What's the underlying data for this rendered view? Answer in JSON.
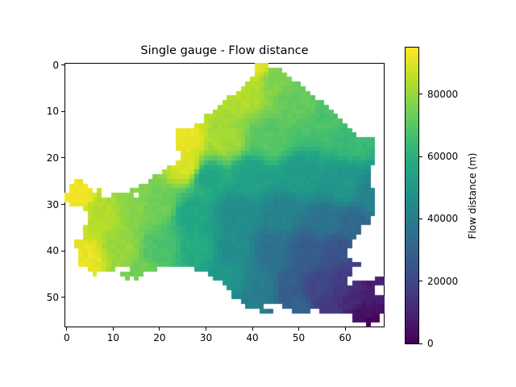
{
  "chart_data": {
    "type": "heatmap",
    "title": "Single gauge - Flow distance",
    "xlabel": "",
    "ylabel": "",
    "xlim": [
      -0.5,
      68.5
    ],
    "ylim": [
      56.5,
      -0.5
    ],
    "x_ticks": [
      0,
      10,
      20,
      30,
      40,
      50,
      60
    ],
    "y_ticks": [
      0,
      10,
      20,
      30,
      40,
      50
    ],
    "colormap": "viridis",
    "colorbar": {
      "label": "Flow distance (m)",
      "range": [
        0,
        95000
      ],
      "ticks": [
        0,
        20000,
        40000,
        60000,
        80000
      ]
    },
    "grid_shape": [
      57,
      69
    ],
    "gauge_location": {
      "col": 65,
      "row": 56,
      "value": 0
    },
    "row_spans": [
      [
        [
          41,
          43
        ]
      ],
      [
        [
          41,
          46
        ]
      ],
      [
        [
          41,
          47
        ]
      ],
      [
        [
          40,
          48
        ]
      ],
      [
        [
          39,
          50
        ]
      ],
      [
        [
          38,
          51
        ]
      ],
      [
        [
          37,
          52
        ]
      ],
      [
        [
          35,
          53
        ]
      ],
      [
        [
          34,
          55
        ]
      ],
      [
        [
          33,
          56
        ]
      ],
      [
        [
          32,
          57
        ]
      ],
      [
        [
          30,
          58
        ]
      ],
      [
        [
          30,
          59
        ]
      ],
      [
        [
          28,
          60
        ]
      ],
      [
        [
          24,
          61
        ]
      ],
      [
        [
          24,
          62
        ]
      ],
      [
        [
          24,
          66
        ]
      ],
      [
        [
          24,
          66
        ]
      ],
      [
        [
          24,
          66
        ]
      ],
      [
        [
          25,
          66
        ]
      ],
      [
        [
          25,
          66
        ]
      ],
      [
        [
          24,
          66
        ]
      ],
      [
        [
          22,
          65
        ]
      ],
      [
        [
          21,
          65
        ]
      ],
      [
        [
          19,
          65
        ]
      ],
      [
        [
          2,
          3
        ],
        [
          18,
          65
        ]
      ],
      [
        [
          1,
          4
        ],
        [
          16,
          65
        ]
      ],
      [
        [
          1,
          5
        ],
        [
          7,
          7
        ],
        [
          14,
          66
        ]
      ],
      [
        [
          0,
          7
        ],
        [
          10,
          14
        ],
        [
          16,
          66
        ]
      ],
      [
        [
          0,
          66
        ]
      ],
      [
        [
          1,
          66
        ]
      ],
      [
        [
          4,
          66
        ]
      ],
      [
        [
          5,
          66
        ]
      ],
      [
        [
          5,
          65
        ]
      ],
      [
        [
          5,
          65
        ]
      ],
      [
        [
          4,
          63
        ]
      ],
      [
        [
          4,
          63
        ]
      ],
      [
        [
          4,
          62
        ]
      ],
      [
        [
          2,
          61
        ]
      ],
      [
        [
          2,
          61
        ]
      ],
      [
        [
          3,
          60
        ]
      ],
      [
        [
          3,
          60
        ]
      ],
      [
        [
          3,
          61
        ]
      ],
      [
        [
          3,
          63
        ]
      ],
      [
        [
          5,
          10
        ],
        [
          14,
          19
        ],
        [
          28,
          61
        ]
      ],
      [
        [
          6,
          6
        ],
        [
          12,
          16
        ],
        [
          31,
          61
        ]
      ],
      [
        [
          13,
          13
        ],
        [
          15,
          15
        ],
        [
          32,
          60
        ],
        [
          67,
          68
        ]
      ],
      [
        [
          34,
          60
        ],
        [
          62,
          68
        ]
      ],
      [
        [
          35,
          66
        ]
      ],
      [
        [
          36,
          66
        ]
      ],
      [
        [
          36,
          68
        ]
      ],
      [
        [
          38,
          68
        ]
      ],
      [
        [
          39,
          42
        ],
        [
          47,
          68
        ]
      ],
      [
        [
          42,
          44
        ],
        [
          49,
          52
        ],
        [
          55,
          68
        ]
      ],
      [
        [
          62,
          67
        ]
      ],
      [
        [
          62,
          67
        ]
      ],
      [
        [
          65,
          65
        ]
      ]
    ],
    "value_anchors": [
      {
        "col": 42,
        "row": 0,
        "value": 90000
      },
      {
        "col": 45,
        "row": 2,
        "value": 76000
      },
      {
        "col": 38,
        "row": 6,
        "value": 84000
      },
      {
        "col": 50,
        "row": 8,
        "value": 72000
      },
      {
        "col": 56,
        "row": 12,
        "value": 68000
      },
      {
        "col": 26,
        "row": 16,
        "value": 92000
      },
      {
        "col": 34,
        "row": 16,
        "value": 82000
      },
      {
        "col": 44,
        "row": 16,
        "value": 70000
      },
      {
        "col": 62,
        "row": 16,
        "value": 64000
      },
      {
        "col": 26,
        "row": 22,
        "value": 90000
      },
      {
        "col": 30,
        "row": 24,
        "value": 56000
      },
      {
        "col": 40,
        "row": 24,
        "value": 54000
      },
      {
        "col": 50,
        "row": 24,
        "value": 52000
      },
      {
        "col": 60,
        "row": 26,
        "value": 50000
      },
      {
        "col": 65,
        "row": 28,
        "value": 42000
      },
      {
        "col": 2,
        "row": 28,
        "value": 93000
      },
      {
        "col": 8,
        "row": 32,
        "value": 84000
      },
      {
        "col": 14,
        "row": 30,
        "value": 78000
      },
      {
        "col": 20,
        "row": 30,
        "value": 74000
      },
      {
        "col": 27,
        "row": 32,
        "value": 56000
      },
      {
        "col": 36,
        "row": 32,
        "value": 46000
      },
      {
        "col": 46,
        "row": 32,
        "value": 42000
      },
      {
        "col": 56,
        "row": 34,
        "value": 36000
      },
      {
        "col": 62,
        "row": 34,
        "value": 32000
      },
      {
        "col": 4,
        "row": 42,
        "value": 92000
      },
      {
        "col": 12,
        "row": 40,
        "value": 80000
      },
      {
        "col": 20,
        "row": 40,
        "value": 68000
      },
      {
        "col": 28,
        "row": 40,
        "value": 58000
      },
      {
        "col": 36,
        "row": 40,
        "value": 46000
      },
      {
        "col": 44,
        "row": 40,
        "value": 36000
      },
      {
        "col": 52,
        "row": 40,
        "value": 28000
      },
      {
        "col": 58,
        "row": 40,
        "value": 24000
      },
      {
        "col": 16,
        "row": 45,
        "value": 74000
      },
      {
        "col": 34,
        "row": 46,
        "value": 50000
      },
      {
        "col": 42,
        "row": 48,
        "value": 40000
      },
      {
        "col": 48,
        "row": 48,
        "value": 28000
      },
      {
        "col": 54,
        "row": 48,
        "value": 20000
      },
      {
        "col": 60,
        "row": 47,
        "value": 16000
      },
      {
        "col": 40,
        "row": 52,
        "value": 40000
      },
      {
        "col": 50,
        "row": 53,
        "value": 30000
      },
      {
        "col": 56,
        "row": 52,
        "value": 16000
      },
      {
        "col": 62,
        "row": 50,
        "value": 10000
      },
      {
        "col": 66,
        "row": 48,
        "value": 8000
      },
      {
        "col": 64,
        "row": 54,
        "value": 4000
      },
      {
        "col": 65,
        "row": 56,
        "value": 0
      }
    ]
  },
  "axes": {
    "x_tick_labels": [
      "0",
      "10",
      "20",
      "30",
      "40",
      "50",
      "60"
    ],
    "y_tick_labels": [
      "0",
      "10",
      "20",
      "30",
      "40",
      "50"
    ]
  },
  "colorbar": {
    "label": "Flow distance (m)",
    "tick_labels": [
      "0",
      "20000",
      "40000",
      "60000",
      "80000"
    ]
  }
}
